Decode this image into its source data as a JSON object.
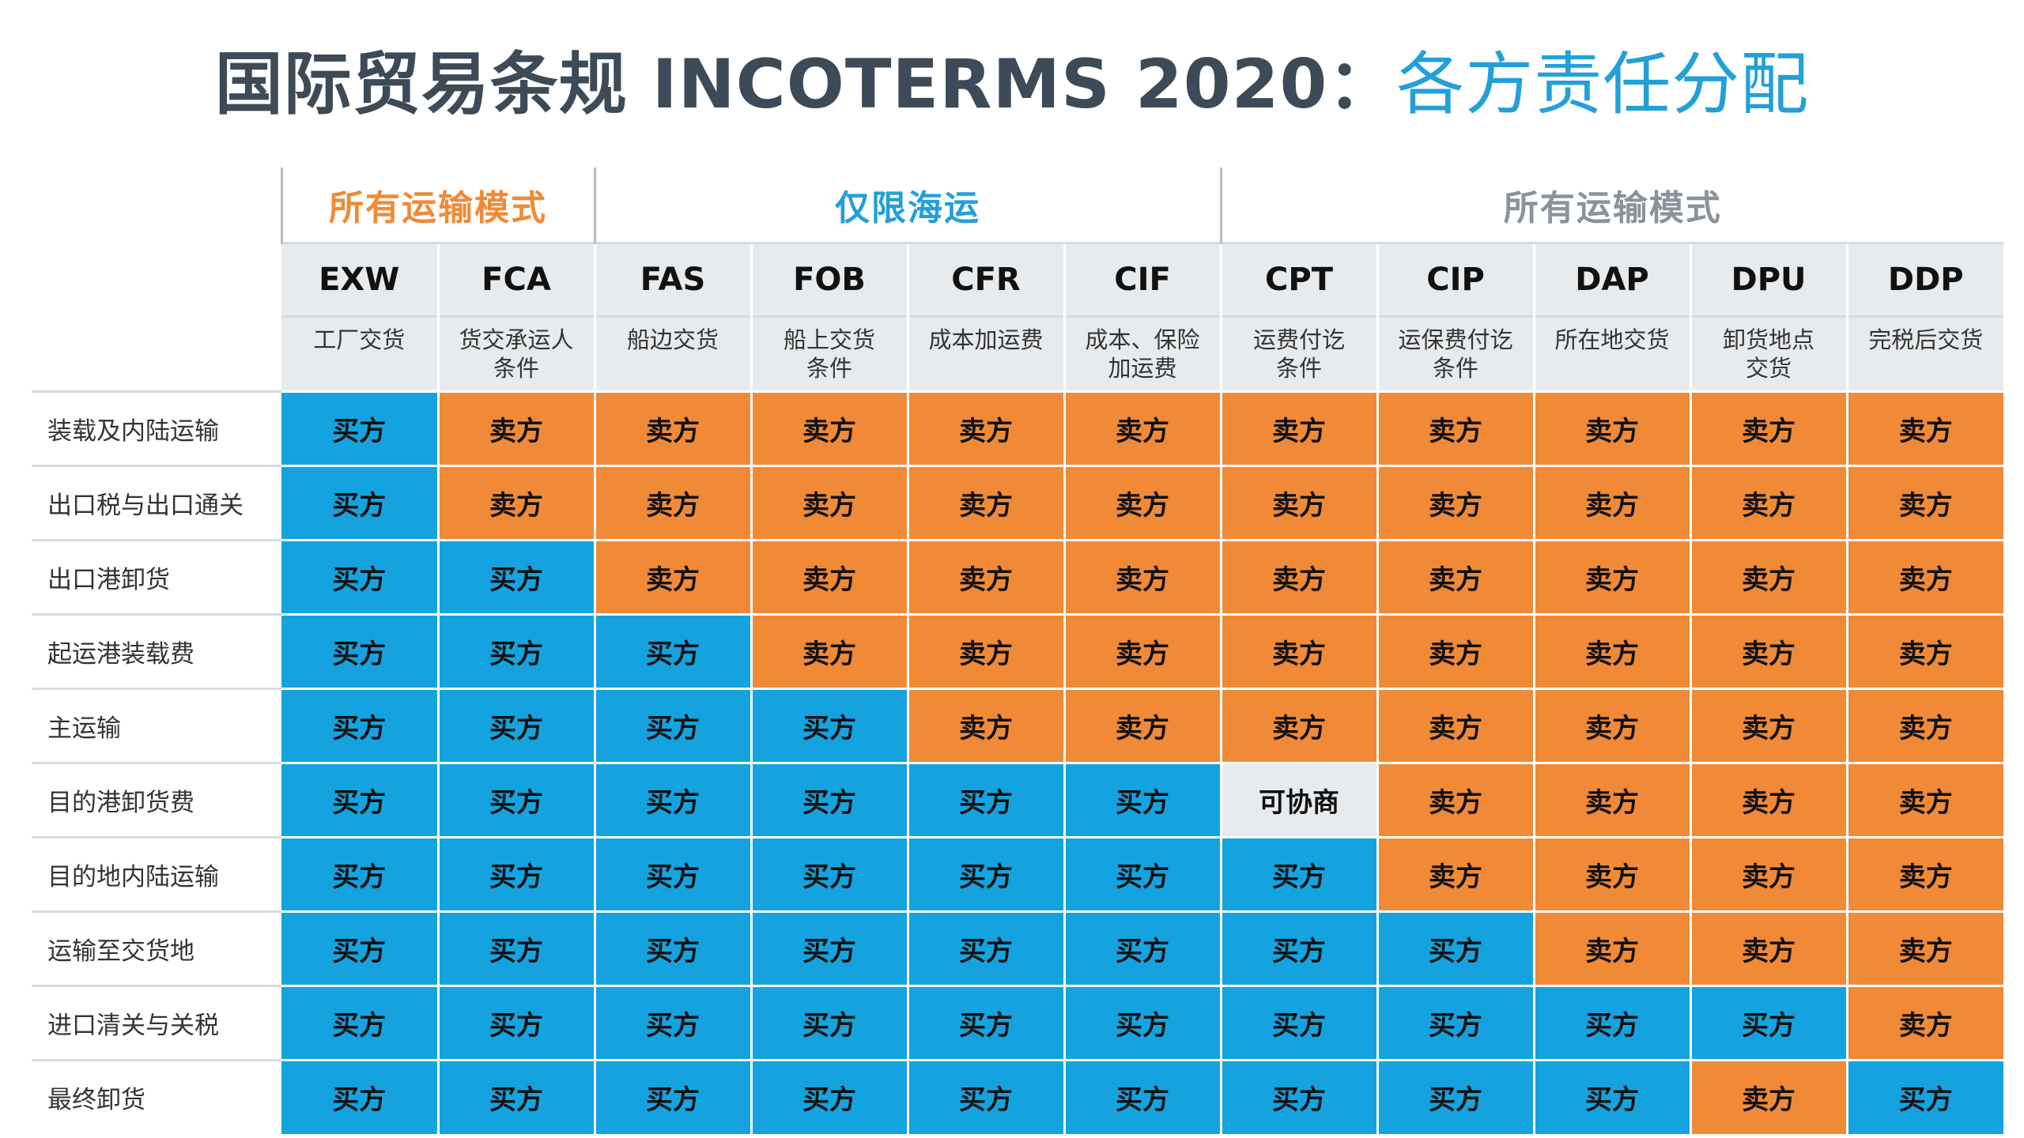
{
  "title": {
    "main": "国际贸易条规 INCOTERMS 2020：",
    "accent": "各方责任分配"
  },
  "colors": {
    "seller": "#f08a37",
    "buyer": "#14a3df",
    "negotiable": "#e8ebee",
    "group_orange": "#f08a37",
    "group_blue": "#23a0d8",
    "group_gray": "#8a939b"
  },
  "groups": [
    {
      "label": "所有运输模式",
      "span": 2,
      "color": "#f08a37"
    },
    {
      "label": "仅限海运",
      "span": 4,
      "color": "#23a0d8"
    },
    {
      "label": "所有运输模式",
      "span": 5,
      "color": "#8a939b"
    }
  ],
  "terms": [
    {
      "code": "EXW",
      "name_lines": [
        "工厂交货"
      ]
    },
    {
      "code": "FCA",
      "name_lines": [
        "货交承运人",
        "条件"
      ]
    },
    {
      "code": "FAS",
      "name_lines": [
        "船边交货"
      ]
    },
    {
      "code": "FOB",
      "name_lines": [
        "船上交货",
        "条件"
      ]
    },
    {
      "code": "CFR",
      "name_lines": [
        "成本加运费"
      ]
    },
    {
      "code": "CIF",
      "name_lines": [
        "成本、保险",
        "加运费"
      ]
    },
    {
      "code": "CPT",
      "name_lines": [
        "运费付讫",
        "条件"
      ]
    },
    {
      "code": "CIP",
      "name_lines": [
        "运保费付讫",
        "条件"
      ]
    },
    {
      "code": "DAP",
      "name_lines": [
        "所在地交货"
      ]
    },
    {
      "code": "DPU",
      "name_lines": [
        "卸货地点",
        "交货"
      ]
    },
    {
      "code": "DDP",
      "name_lines": [
        "完税后交货"
      ]
    }
  ],
  "rows": [
    {
      "label": "装载及内陆运输",
      "cells": [
        "买方",
        "卖方",
        "卖方",
        "卖方",
        "卖方",
        "卖方",
        "卖方",
        "卖方",
        "卖方",
        "卖方",
        "卖方"
      ]
    },
    {
      "label": "出口税与出口通关",
      "cells": [
        "买方",
        "卖方",
        "卖方",
        "卖方",
        "卖方",
        "卖方",
        "卖方",
        "卖方",
        "卖方",
        "卖方",
        "卖方"
      ]
    },
    {
      "label": "出口港卸货",
      "cells": [
        "买方",
        "买方",
        "卖方",
        "卖方",
        "卖方",
        "卖方",
        "卖方",
        "卖方",
        "卖方",
        "卖方",
        "卖方"
      ]
    },
    {
      "label": "起运港装载费",
      "cells": [
        "买方",
        "买方",
        "买方",
        "卖方",
        "卖方",
        "卖方",
        "卖方",
        "卖方",
        "卖方",
        "卖方",
        "卖方"
      ]
    },
    {
      "label": "主运输",
      "cells": [
        "买方",
        "买方",
        "买方",
        "买方",
        "卖方",
        "卖方",
        "卖方",
        "卖方",
        "卖方",
        "卖方",
        "卖方"
      ]
    },
    {
      "label": "目的港卸货费",
      "cells": [
        "买方",
        "买方",
        "买方",
        "买方",
        "买方",
        "买方",
        "可协商",
        "卖方",
        "卖方",
        "卖方",
        "卖方"
      ]
    },
    {
      "label": "目的地内陆运输",
      "cells": [
        "买方",
        "买方",
        "买方",
        "买方",
        "买方",
        "买方",
        "买方",
        "卖方",
        "卖方",
        "卖方",
        "卖方"
      ]
    },
    {
      "label": "运输至交货地",
      "cells": [
        "买方",
        "买方",
        "买方",
        "买方",
        "买方",
        "买方",
        "买方",
        "买方",
        "卖方",
        "卖方",
        "卖方"
      ]
    },
    {
      "label": "进口清关与关税",
      "cells": [
        "买方",
        "买方",
        "买方",
        "买方",
        "买方",
        "买方",
        "买方",
        "买方",
        "买方",
        "买方",
        "卖方"
      ]
    },
    {
      "label": "最终卸货",
      "cells": [
        "买方",
        "买方",
        "买方",
        "买方",
        "买方",
        "买方",
        "买方",
        "买方",
        "买方",
        "卖方",
        "买方"
      ]
    }
  ]
}
